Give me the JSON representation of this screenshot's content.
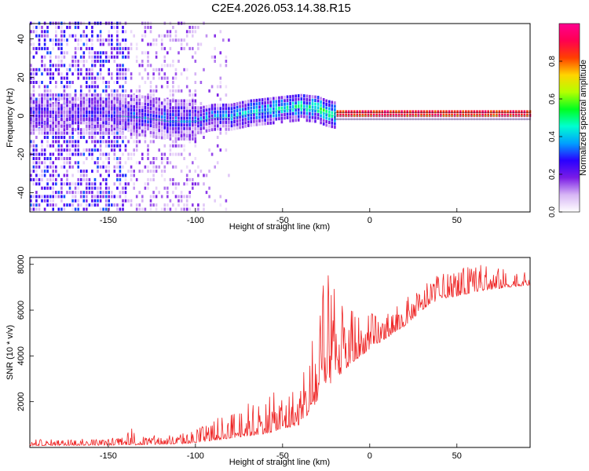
{
  "title": "C2E4.2026.053.14.38.R15",
  "chart_data": [
    {
      "type": "heatmap",
      "name": "spectrogram",
      "xlabel": "Height of straight line (km)",
      "ylabel": "Frequency (Hz)",
      "xlim": [
        -195,
        92
      ],
      "ylim": [
        -50,
        48
      ],
      "xticks": [
        -150,
        -100,
        -50,
        0,
        50
      ],
      "yticks": [
        -40,
        -20,
        0,
        20,
        40
      ],
      "colorbar": {
        "label": "Normalized spectral amplitude",
        "range": [
          0,
          1
        ],
        "ticks": [
          0.0,
          0.2,
          0.4,
          0.6,
          0.8
        ],
        "tick_labels": [
          "0.0",
          "0.2",
          "0.4",
          "0.6",
          "0.8"
        ],
        "colors": [
          "#ffffff",
          "#d7b6f5",
          "#7a1ce6",
          "#2a00ff",
          "#00a0ff",
          "#00ffd0",
          "#00ff20",
          "#b4ff00",
          "#ffd400",
          "#ff4000",
          "#ff0050",
          "#ff0090"
        ]
      },
      "ridge": {
        "description": "dominant frequency trace",
        "x": [
          -145,
          -130,
          -115,
          -100,
          -90,
          -80,
          -70,
          -60,
          -50,
          -40,
          -30,
          -25,
          -20,
          0,
          50,
          92
        ],
        "y": [
          0,
          -1,
          -3,
          -3,
          -1,
          -1,
          1,
          2,
          3,
          4,
          3,
          1,
          0,
          0,
          0,
          0
        ]
      }
    },
    {
      "type": "line",
      "name": "snr",
      "xlabel": "Height of straight line (km)",
      "ylabel": "SNR (10 * v/v)",
      "xlim": [
        -195,
        92
      ],
      "ylim": [
        0,
        8300
      ],
      "xticks": [
        -150,
        -100,
        -50,
        0,
        50
      ],
      "yticks": [
        2000,
        4000,
        6000,
        8000
      ],
      "color": "#ee2222",
      "envelope": {
        "x": [
          -195,
          -150,
          -140,
          -137,
          -135,
          -130,
          -110,
          -100,
          -90,
          -80,
          -70,
          -60,
          -50,
          -40,
          -35,
          -30,
          -25,
          -20,
          -15,
          -10,
          -5,
          0,
          10,
          20,
          30,
          40,
          50,
          60,
          70,
          80,
          92
        ],
        "base": [
          80,
          100,
          110,
          120,
          110,
          120,
          150,
          200,
          300,
          400,
          500,
          600,
          800,
          1000,
          1500,
          2000,
          2600,
          3000,
          3300,
          3700,
          4000,
          4300,
          4800,
          5300,
          6000,
          6500,
          6600,
          6800,
          6900,
          7000,
          7100
        ],
        "peak": [
          350,
          400,
          450,
          1100,
          800,
          500,
          600,
          800,
          1200,
          1600,
          2000,
          2200,
          2600,
          2800,
          4000,
          6500,
          7500,
          7700,
          6000,
          6500,
          5800,
          5900,
          6000,
          6500,
          7000,
          7600,
          7700,
          8100,
          7900,
          7800,
          7600
        ]
      }
    }
  ]
}
